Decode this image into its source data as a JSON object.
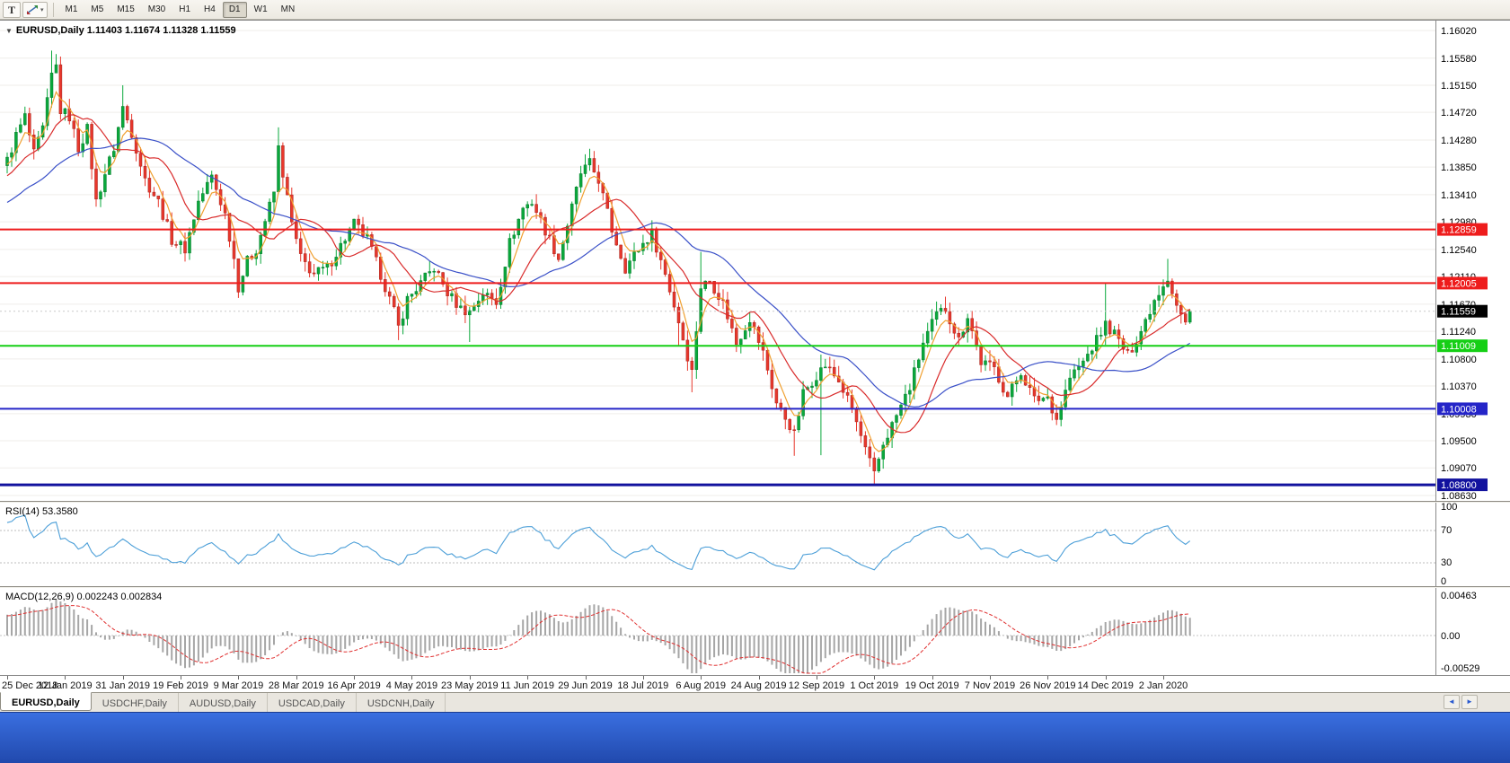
{
  "toolbar": {
    "icons": {
      "pointer_tool_label": "T",
      "studies_caret": "▾"
    },
    "timeframes": [
      "M1",
      "M5",
      "M15",
      "M30",
      "H1",
      "H4",
      "D1",
      "W1",
      "MN"
    ],
    "active_timeframe": "D1"
  },
  "chart": {
    "title": "EURUSD,Daily",
    "collapse_arrow": "▼",
    "ohlc": "1.11403 1.11674 1.11328 1.11559"
  },
  "price_axis": {
    "ticks": [
      "1.16020",
      "1.15580",
      "1.15150",
      "1.14720",
      "1.14280",
      "1.13850",
      "1.13410",
      "1.12980",
      "1.12540",
      "1.12110",
      "1.11670",
      "1.11240",
      "1.10800",
      "1.10370",
      "1.09930",
      "1.09500",
      "1.09070",
      "1.08630"
    ]
  },
  "hlines": [
    {
      "price": 1.12859,
      "label": "1.12859",
      "color": "#ee1c1c",
      "line_width": 2
    },
    {
      "price": 1.12005,
      "label": "1.12005",
      "color": "#ee1c1c",
      "line_width": 2
    },
    {
      "price": 1.11009,
      "label": "1.11009",
      "color": "#15cf15",
      "line_width": 2
    },
    {
      "price": 1.10008,
      "label": "1.10008",
      "color": "#2525c8",
      "line_width": 2
    },
    {
      "price": 1.088,
      "label": "1.08800",
      "color": "#12129e",
      "line_width": 3
    }
  ],
  "current_price": {
    "label": "1.11559",
    "value": 1.11559,
    "bg": "#000000"
  },
  "rsi": {
    "label": "RSI(14)",
    "value": "53.3580",
    "axis_labels": [
      "100",
      "70",
      "30",
      "0"
    ],
    "levels": [
      70,
      30
    ],
    "line_color": "#4c9fd8"
  },
  "macd": {
    "label": "MACD(12,26,9)",
    "values": "0.002243 0.002834",
    "axis_labels": [
      "0.00463",
      "0.00",
      "-0.00529"
    ],
    "hist_color": "#a6a6a6",
    "signal_color": "#e03030",
    "range_max": 0.00463,
    "range_min": -0.00529
  },
  "time_axis": {
    "dates": [
      "25 Dec 2018",
      "12 Jan 2019",
      "31 Jan 2019",
      "19 Feb 2019",
      "9 Mar 2019",
      "28 Mar 2019",
      "16 Apr 2019",
      "4 May 2019",
      "23 May 2019",
      "11 Jun 2019",
      "29 Jun 2019",
      "18 Jul 2019",
      "6 Aug 2019",
      "24 Aug 2019",
      "12 Sep 2019",
      "1 Oct 2019",
      "19 Oct 2019",
      "7 Nov 2019",
      "26 Nov 2019",
      "14 Dec 2019",
      "2 Jan 2020"
    ]
  },
  "tabs": [
    {
      "label": "EURUSD,Daily",
      "active": true
    },
    {
      "label": "USDCHF,Daily",
      "active": false
    },
    {
      "label": "AUDUSD,Daily",
      "active": false
    },
    {
      "label": "USDCAD,Daily",
      "active": false
    },
    {
      "label": "USDCNH,Daily",
      "active": false
    }
  ],
  "tab_scroller": {
    "left": "◄",
    "right": "►"
  },
  "chart_data": {
    "type": "candlestick",
    "symbol": "EURUSD",
    "timeframe": "Daily",
    "price_max_visible": 1.1602,
    "price_min_visible": 1.0863,
    "candles_count": 267,
    "final_close": 1.11559,
    "up_color": "#0aa83c",
    "up_border": "#067a2b",
    "down_color": "#e8372c",
    "down_border": "#a3251e",
    "close_anchors": [
      [
        0,
        1.1395
      ],
      [
        2,
        1.1435
      ],
      [
        4,
        1.1465
      ],
      [
        6,
        1.1405
      ],
      [
        8,
        1.1445
      ],
      [
        10,
        1.153
      ],
      [
        11,
        1.1545
      ],
      [
        12,
        1.1475
      ],
      [
        14,
        1.1465
      ],
      [
        16,
        1.1415
      ],
      [
        18,
        1.1445
      ],
      [
        20,
        1.133
      ],
      [
        22,
        1.1375
      ],
      [
        24,
        1.1415
      ],
      [
        26,
        1.148
      ],
      [
        28,
        1.144
      ],
      [
        31,
        1.1365
      ],
      [
        34,
        1.133
      ],
      [
        37,
        1.127
      ],
      [
        40,
        1.1255
      ],
      [
        43,
        1.133
      ],
      [
        46,
        1.137
      ],
      [
        49,
        1.131
      ],
      [
        51,
        1.124
      ],
      [
        52,
        1.1195
      ],
      [
        54,
        1.1235
      ],
      [
        56,
        1.1255
      ],
      [
        58,
        1.13
      ],
      [
        60,
        1.1345
      ],
      [
        61,
        1.1415
      ],
      [
        62,
        1.1375
      ],
      [
        64,
        1.1295
      ],
      [
        66,
        1.124
      ],
      [
        69,
        1.1215
      ],
      [
        72,
        1.1225
      ],
      [
        75,
        1.126
      ],
      [
        78,
        1.1295
      ],
      [
        81,
        1.127
      ],
      [
        84,
        1.1215
      ],
      [
        87,
        1.1155
      ],
      [
        88,
        1.113
      ],
      [
        90,
        1.1175
      ],
      [
        93,
        1.12
      ],
      [
        96,
        1.1225
      ],
      [
        99,
        1.1185
      ],
      [
        102,
        1.116
      ],
      [
        104,
        1.1155
      ],
      [
        107,
        1.1185
      ],
      [
        110,
        1.117
      ],
      [
        113,
        1.1265
      ],
      [
        116,
        1.132
      ],
      [
        118,
        1.133
      ],
      [
        121,
        1.1285
      ],
      [
        124,
        1.124
      ],
      [
        127,
        1.132
      ],
      [
        129,
        1.1375
      ],
      [
        131,
        1.139
      ],
      [
        133,
        1.1365
      ],
      [
        136,
        1.1285
      ],
      [
        139,
        1.1225
      ],
      [
        142,
        1.1255
      ],
      [
        145,
        1.128
      ],
      [
        148,
        1.1215
      ],
      [
        151,
        1.114
      ],
      [
        153,
        1.1085
      ],
      [
        154,
        1.106
      ],
      [
        156,
        1.1195
      ],
      [
        158,
        1.1205
      ],
      [
        161,
        1.117
      ],
      [
        164,
        1.1105
      ],
      [
        167,
        1.1145
      ],
      [
        170,
        1.109
      ],
      [
        173,
        1.101
      ],
      [
        176,
        1.0975
      ],
      [
        177,
        1.096
      ],
      [
        179,
        1.1025
      ],
      [
        182,
        1.1055
      ],
      [
        184,
        1.107
      ],
      [
        187,
        1.1045
      ],
      [
        190,
        1.1
      ],
      [
        193,
        1.0935
      ],
      [
        195,
        1.0895
      ],
      [
        197,
        1.0945
      ],
      [
        200,
        1.099
      ],
      [
        203,
        1.1035
      ],
      [
        206,
        1.1105
      ],
      [
        209,
        1.115
      ],
      [
        211,
        1.116
      ],
      [
        214,
        1.111
      ],
      [
        216,
        1.115
      ],
      [
        219,
        1.1075
      ],
      [
        222,
        1.1065
      ],
      [
        225,
        1.102
      ],
      [
        228,
        1.106
      ],
      [
        231,
        1.1015
      ],
      [
        234,
        1.102
      ],
      [
        236,
        1.0985
      ],
      [
        239,
        1.105
      ],
      [
        242,
        1.1075
      ],
      [
        245,
        1.111
      ],
      [
        247,
        1.1135
      ],
      [
        249,
        1.112
      ],
      [
        252,
        1.1085
      ],
      [
        255,
        1.1125
      ],
      [
        258,
        1.1175
      ],
      [
        260,
        1.12
      ],
      [
        261,
        1.121
      ],
      [
        263,
        1.1165
      ],
      [
        265,
        1.1135
      ],
      [
        266,
        1.1156
      ]
    ],
    "wick_overrides": {
      "10": {
        "high": 1.157
      },
      "26": {
        "high": 1.1515
      },
      "52": {
        "low": 1.1177
      },
      "61": {
        "high": 1.1448
      },
      "88": {
        "low": 1.111
      },
      "104": {
        "low": 1.1107
      },
      "131": {
        "high": 1.1412
      },
      "151": {
        "low": 1.1101
      },
      "154": {
        "low": 1.1027
      },
      "156": {
        "high": 1.125
      },
      "177": {
        "low": 1.0926
      },
      "183": {
        "low": 1.0927,
        "high": 1.1087
      },
      "195": {
        "low": 1.0879
      },
      "211": {
        "high": 1.1179
      },
      "247": {
        "high": 1.12
      },
      "261": {
        "high": 1.1239
      }
    },
    "ma_lines": [
      {
        "period": 5,
        "method": "ema",
        "color": "#f0a030"
      },
      {
        "period": 13,
        "method": "sma",
        "color": "#d92b2b"
      },
      {
        "period": 34,
        "method": "sma",
        "color": "#3a50c8"
      }
    ],
    "rsi_period": 14,
    "macd_params": {
      "fast": 12,
      "slow": 26,
      "signal": 9
    }
  }
}
